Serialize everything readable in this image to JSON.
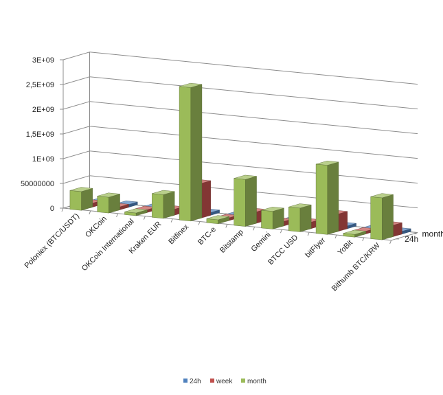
{
  "chart_data": {
    "type": "bar",
    "style": "3d-column-depth",
    "categories": [
      "Poloniex (BTC/USDT)",
      "OKCoin",
      "OKCoin International",
      "Kraken EUR",
      "Bitfinex",
      "BTC-e",
      "Bitstamp",
      "Gemini",
      "BTCC USD",
      "bitFlyer",
      "YoBit",
      "Bithumb BTC/KRW"
    ],
    "series": [
      {
        "name": "24h",
        "color": "#4f81bd",
        "values": [
          10000000,
          6000000,
          5000000,
          8000000,
          30000000,
          5000000,
          12000000,
          8000000,
          9000000,
          25000000,
          7000000,
          20000000
        ]
      },
      {
        "name": "week",
        "color": "#c0504d",
        "values": [
          80000000,
          60000000,
          15000000,
          120000000,
          700000000,
          25000000,
          230000000,
          90000000,
          130000000,
          350000000,
          20000000,
          230000000
        ]
      },
      {
        "name": "month",
        "color": "#9bbb59",
        "values": [
          380000000,
          320000000,
          40000000,
          480000000,
          2700000000,
          80000000,
          950000000,
          360000000,
          480000000,
          1400000000,
          40000000,
          850000000
        ]
      }
    ],
    "yticks": [
      "0",
      "50000000",
      "1E+09",
      "1,5E+09",
      "2E+09",
      "2,5E+09",
      "3E+09"
    ],
    "ylim": [
      0,
      3000000000
    ],
    "depth_labels": [
      "month",
      "24h"
    ],
    "legend": [
      "24h",
      "week",
      "month"
    ],
    "legend_position": "bottom",
    "grid": true
  }
}
